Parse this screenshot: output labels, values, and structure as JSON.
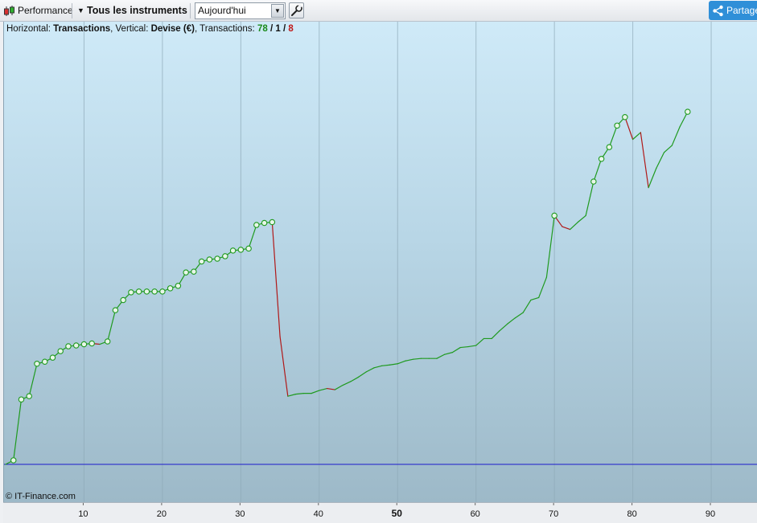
{
  "toolbar": {
    "performance_label": "Performance",
    "instruments_label": "Tous les instruments",
    "period_value": "Aujourd'hui",
    "share_label": "Partager"
  },
  "info": {
    "horizontal_prefix": "Horizontal: ",
    "horizontal_value": "Transactions",
    "vertical_prefix": ", Vertical: ",
    "vertical_value": "Devise (€)",
    "transactions_prefix": ", Transactions: ",
    "tx_total": "78",
    "tx_sep1": " / ",
    "tx_neutral": "1",
    "tx_sep2": " / ",
    "tx_losing": "8"
  },
  "copyright": "© IT-Finance.com",
  "colors": {
    "gain": "#1f9a1f",
    "loss": "#b01818",
    "baseline": "#1a1acc",
    "grid": "#8fa9b8"
  },
  "chart_data": {
    "type": "line",
    "xlabel": "",
    "ylabel": "",
    "xlim": [
      0,
      96
    ],
    "ylim": [
      0,
      100
    ],
    "baseline_y": 0,
    "x_ticks": [
      10,
      20,
      30,
      40,
      50,
      60,
      70,
      80,
      90
    ],
    "x_tick_labels": [
      "10",
      "20",
      "30",
      "40",
      "50",
      "60",
      "70",
      "80",
      "90"
    ],
    "emphasized_tick": "50",
    "grid": true,
    "points": [
      {
        "x": 0,
        "y": 0,
        "m": false,
        "c": "g"
      },
      {
        "x": 1,
        "y": 1,
        "m": true,
        "c": "g"
      },
      {
        "x": 2,
        "y": 16,
        "m": true,
        "c": "g"
      },
      {
        "x": 3,
        "y": 16.8,
        "m": true,
        "c": "g"
      },
      {
        "x": 4,
        "y": 24.8,
        "m": true,
        "c": "g"
      },
      {
        "x": 5,
        "y": 25.3,
        "m": true,
        "c": "g"
      },
      {
        "x": 6,
        "y": 26.3,
        "m": true,
        "c": "g"
      },
      {
        "x": 7,
        "y": 27.9,
        "m": true,
        "c": "g"
      },
      {
        "x": 8,
        "y": 29.1,
        "m": true,
        "c": "g"
      },
      {
        "x": 9,
        "y": 29.3,
        "m": true,
        "c": "g"
      },
      {
        "x": 10,
        "y": 29.6,
        "m": true,
        "c": "g"
      },
      {
        "x": 11,
        "y": 29.8,
        "m": true,
        "c": "g"
      },
      {
        "x": 12,
        "y": 29.6,
        "m": false,
        "c": "r"
      },
      {
        "x": 13,
        "y": 30.3,
        "m": true,
        "c": "g"
      },
      {
        "x": 14,
        "y": 38,
        "m": true,
        "c": "g"
      },
      {
        "x": 15,
        "y": 40.5,
        "m": true,
        "c": "g"
      },
      {
        "x": 16,
        "y": 42.4,
        "m": true,
        "c": "g"
      },
      {
        "x": 17,
        "y": 42.6,
        "m": true,
        "c": "g"
      },
      {
        "x": 18,
        "y": 42.6,
        "m": true,
        "c": "g"
      },
      {
        "x": 19,
        "y": 42.6,
        "m": true,
        "c": "g"
      },
      {
        "x": 20,
        "y": 42.6,
        "m": true,
        "c": "g"
      },
      {
        "x": 21,
        "y": 43.4,
        "m": true,
        "c": "g"
      },
      {
        "x": 22,
        "y": 44,
        "m": true,
        "c": "g"
      },
      {
        "x": 23,
        "y": 47.3,
        "m": true,
        "c": "g"
      },
      {
        "x": 24,
        "y": 47.5,
        "m": true,
        "c": "g"
      },
      {
        "x": 25,
        "y": 50,
        "m": true,
        "c": "g"
      },
      {
        "x": 26,
        "y": 50.5,
        "m": true,
        "c": "g"
      },
      {
        "x": 27,
        "y": 50.7,
        "m": true,
        "c": "g"
      },
      {
        "x": 28,
        "y": 51.3,
        "m": true,
        "c": "g"
      },
      {
        "x": 29,
        "y": 52.7,
        "m": true,
        "c": "g"
      },
      {
        "x": 30,
        "y": 52.9,
        "m": true,
        "c": "g"
      },
      {
        "x": 31,
        "y": 53.2,
        "m": true,
        "c": "g"
      },
      {
        "x": 32,
        "y": 59,
        "m": true,
        "c": "g"
      },
      {
        "x": 33,
        "y": 59.5,
        "m": true,
        "c": "g"
      },
      {
        "x": 34,
        "y": 59.7,
        "m": true,
        "c": "g"
      },
      {
        "x": 35,
        "y": 31.5,
        "m": false,
        "c": "r"
      },
      {
        "x": 36,
        "y": 16.8,
        "m": false,
        "c": "r"
      },
      {
        "x": 37,
        "y": 17.3,
        "m": false,
        "c": "g"
      },
      {
        "x": 38,
        "y": 17.5,
        "m": false,
        "c": "g"
      },
      {
        "x": 39,
        "y": 17.5,
        "m": false,
        "c": "g"
      },
      {
        "x": 40,
        "y": 18.2,
        "m": false,
        "c": "g"
      },
      {
        "x": 41,
        "y": 18.7,
        "m": false,
        "c": "g"
      },
      {
        "x": 42,
        "y": 18.4,
        "m": false,
        "c": "r"
      },
      {
        "x": 43,
        "y": 19.5,
        "m": false,
        "c": "g"
      },
      {
        "x": 44,
        "y": 20.4,
        "m": false,
        "c": "g"
      },
      {
        "x": 45,
        "y": 21.5,
        "m": false,
        "c": "g"
      },
      {
        "x": 46,
        "y": 22.8,
        "m": false,
        "c": "g"
      },
      {
        "x": 47,
        "y": 23.8,
        "m": false,
        "c": "g"
      },
      {
        "x": 48,
        "y": 24.3,
        "m": false,
        "c": "g"
      },
      {
        "x": 49,
        "y": 24.5,
        "m": false,
        "c": "g"
      },
      {
        "x": 50,
        "y": 24.8,
        "m": false,
        "c": "g"
      },
      {
        "x": 51,
        "y": 25.5,
        "m": false,
        "c": "g"
      },
      {
        "x": 52,
        "y": 25.9,
        "m": false,
        "c": "g"
      },
      {
        "x": 53,
        "y": 26.1,
        "m": false,
        "c": "g"
      },
      {
        "x": 54,
        "y": 26.1,
        "m": false,
        "c": "g"
      },
      {
        "x": 55,
        "y": 26.1,
        "m": false,
        "c": "g"
      },
      {
        "x": 56,
        "y": 27.1,
        "m": false,
        "c": "g"
      },
      {
        "x": 57,
        "y": 27.6,
        "m": false,
        "c": "g"
      },
      {
        "x": 58,
        "y": 28.8,
        "m": false,
        "c": "g"
      },
      {
        "x": 59,
        "y": 29,
        "m": false,
        "c": "g"
      },
      {
        "x": 60,
        "y": 29.3,
        "m": false,
        "c": "g"
      },
      {
        "x": 61,
        "y": 31,
        "m": false,
        "c": "g"
      },
      {
        "x": 62,
        "y": 31,
        "m": false,
        "c": "g"
      },
      {
        "x": 63,
        "y": 32.9,
        "m": false,
        "c": "g"
      },
      {
        "x": 64,
        "y": 34.6,
        "m": false,
        "c": "g"
      },
      {
        "x": 65,
        "y": 36.1,
        "m": false,
        "c": "g"
      },
      {
        "x": 66,
        "y": 37.4,
        "m": false,
        "c": "g"
      },
      {
        "x": 67,
        "y": 40.5,
        "m": false,
        "c": "g"
      },
      {
        "x": 68,
        "y": 41.1,
        "m": false,
        "c": "g"
      },
      {
        "x": 69,
        "y": 46.1,
        "m": false,
        "c": "g"
      },
      {
        "x": 70,
        "y": 61.3,
        "m": true,
        "c": "g"
      },
      {
        "x": 71,
        "y": 58.6,
        "m": false,
        "c": "r"
      },
      {
        "x": 72,
        "y": 57.9,
        "m": false,
        "c": "r"
      },
      {
        "x": 73,
        "y": 59.7,
        "m": false,
        "c": "g"
      },
      {
        "x": 74,
        "y": 61.3,
        "m": false,
        "c": "g"
      },
      {
        "x": 75,
        "y": 69.7,
        "m": true,
        "c": "g"
      },
      {
        "x": 76,
        "y": 75.3,
        "m": true,
        "c": "g"
      },
      {
        "x": 77,
        "y": 78.2,
        "m": true,
        "c": "g"
      },
      {
        "x": 78,
        "y": 83.5,
        "m": true,
        "c": "g"
      },
      {
        "x": 79,
        "y": 85.6,
        "m": true,
        "c": "g"
      },
      {
        "x": 80,
        "y": 80.1,
        "m": false,
        "c": "r"
      },
      {
        "x": 81,
        "y": 81.8,
        "m": false,
        "c": "g"
      },
      {
        "x": 82,
        "y": 68.2,
        "m": false,
        "c": "r"
      },
      {
        "x": 83,
        "y": 73,
        "m": false,
        "c": "g"
      },
      {
        "x": 84,
        "y": 76.9,
        "m": false,
        "c": "g"
      },
      {
        "x": 85,
        "y": 78.6,
        "m": false,
        "c": "g"
      },
      {
        "x": 86,
        "y": 83.2,
        "m": false,
        "c": "g"
      },
      {
        "x": 87,
        "y": 86.9,
        "m": true,
        "c": "g"
      }
    ]
  }
}
